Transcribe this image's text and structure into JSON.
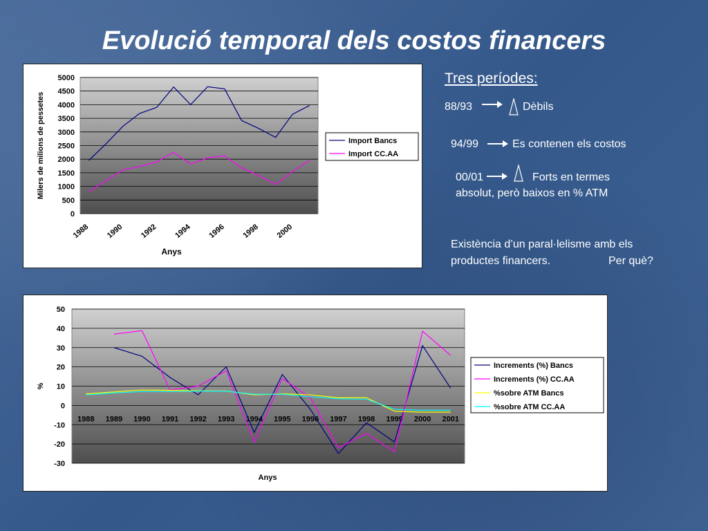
{
  "slide": {
    "title": "Evolució temporal dels costos financers",
    "notes_heading": "Tres períodes:",
    "period1_label": "88/93",
    "period1_text": "Dèbils",
    "period2_label": "94/99",
    "period2_text": "Es contenen els costos",
    "period3_label": "00/01",
    "period3_text": "Forts en termes",
    "period3_text2": "absolut, però baixos en % ATM",
    "conclusion_line1": "Existència d’un paral·lelisme amb els",
    "conclusion_line2": "productes financers.",
    "conclusion_question": "Per què?"
  },
  "chart_data": [
    {
      "type": "line",
      "xlabel": "Anys",
      "ylabel": "Milers de milions de pessetes",
      "ylim": [
        0,
        5000
      ],
      "yticks": [
        0,
        500,
        1000,
        1500,
        2000,
        2500,
        3000,
        3500,
        4000,
        4500,
        5000
      ],
      "xticks": [
        "1988",
        "1990",
        "1992",
        "1994",
        "1996",
        "1998",
        "2000"
      ],
      "x": [
        1988,
        1989,
        1990,
        1991,
        1992,
        1993,
        1994,
        1995,
        1996,
        1997,
        1998,
        1999,
        2000,
        2001
      ],
      "legend_position": "right",
      "grid": true,
      "series": [
        {
          "name": "Import Bancs",
          "color": "#000080",
          "values": [
            1950,
            2550,
            3200,
            3680,
            3900,
            4650,
            4000,
            4660,
            4580,
            3420,
            3130,
            2800,
            3650,
            3970
          ]
        },
        {
          "name": "Import CC.AA",
          "color": "#ff00ff",
          "values": [
            800,
            1200,
            1600,
            1730,
            1900,
            2250,
            1820,
            2050,
            2120,
            1680,
            1400,
            1070,
            1550,
            1960
          ]
        }
      ]
    },
    {
      "type": "line",
      "xlabel": "Anys",
      "ylabel": "%",
      "ylim": [
        -30,
        50
      ],
      "yticks": [
        -30,
        -20,
        -10,
        0,
        10,
        20,
        30,
        40,
        50
      ],
      "categories": [
        "1988",
        "1989",
        "1990",
        "1991",
        "1992",
        "1993",
        "1994",
        "1995",
        "1996",
        "1997",
        "1998",
        "1999",
        "2000",
        "2001"
      ],
      "legend_position": "right",
      "grid": true,
      "series": [
        {
          "name": "Increments (%) Bancs",
          "color": "#000080",
          "values": [
            null,
            30,
            25.5,
            14.5,
            5.5,
            20,
            -14,
            16,
            -2,
            -25,
            -9,
            -19,
            31,
            9
          ]
        },
        {
          "name": "Increments (%) CC.AA",
          "color": "#ff00ff",
          "values": [
            null,
            37,
            38.8,
            8,
            10,
            18,
            -19,
            14,
            4,
            -22,
            -14.5,
            -24,
            38.5,
            26
          ]
        },
        {
          "name": "%sobre ATM Bancs",
          "color": "#ffff00",
          "values": [
            6,
            7,
            8,
            7.8,
            7.6,
            7.5,
            5.5,
            6,
            5.5,
            4,
            4,
            -3,
            -3.5,
            -3.5
          ]
        },
        {
          "name": "%sobre ATM CC.AA",
          "color": "#00ffff",
          "values": [
            5.5,
            6.5,
            7.2,
            7.2,
            7.4,
            7.4,
            5.8,
            5.8,
            4.5,
            3.5,
            3.2,
            -2,
            -2.5,
            -2.5
          ]
        }
      ]
    }
  ]
}
